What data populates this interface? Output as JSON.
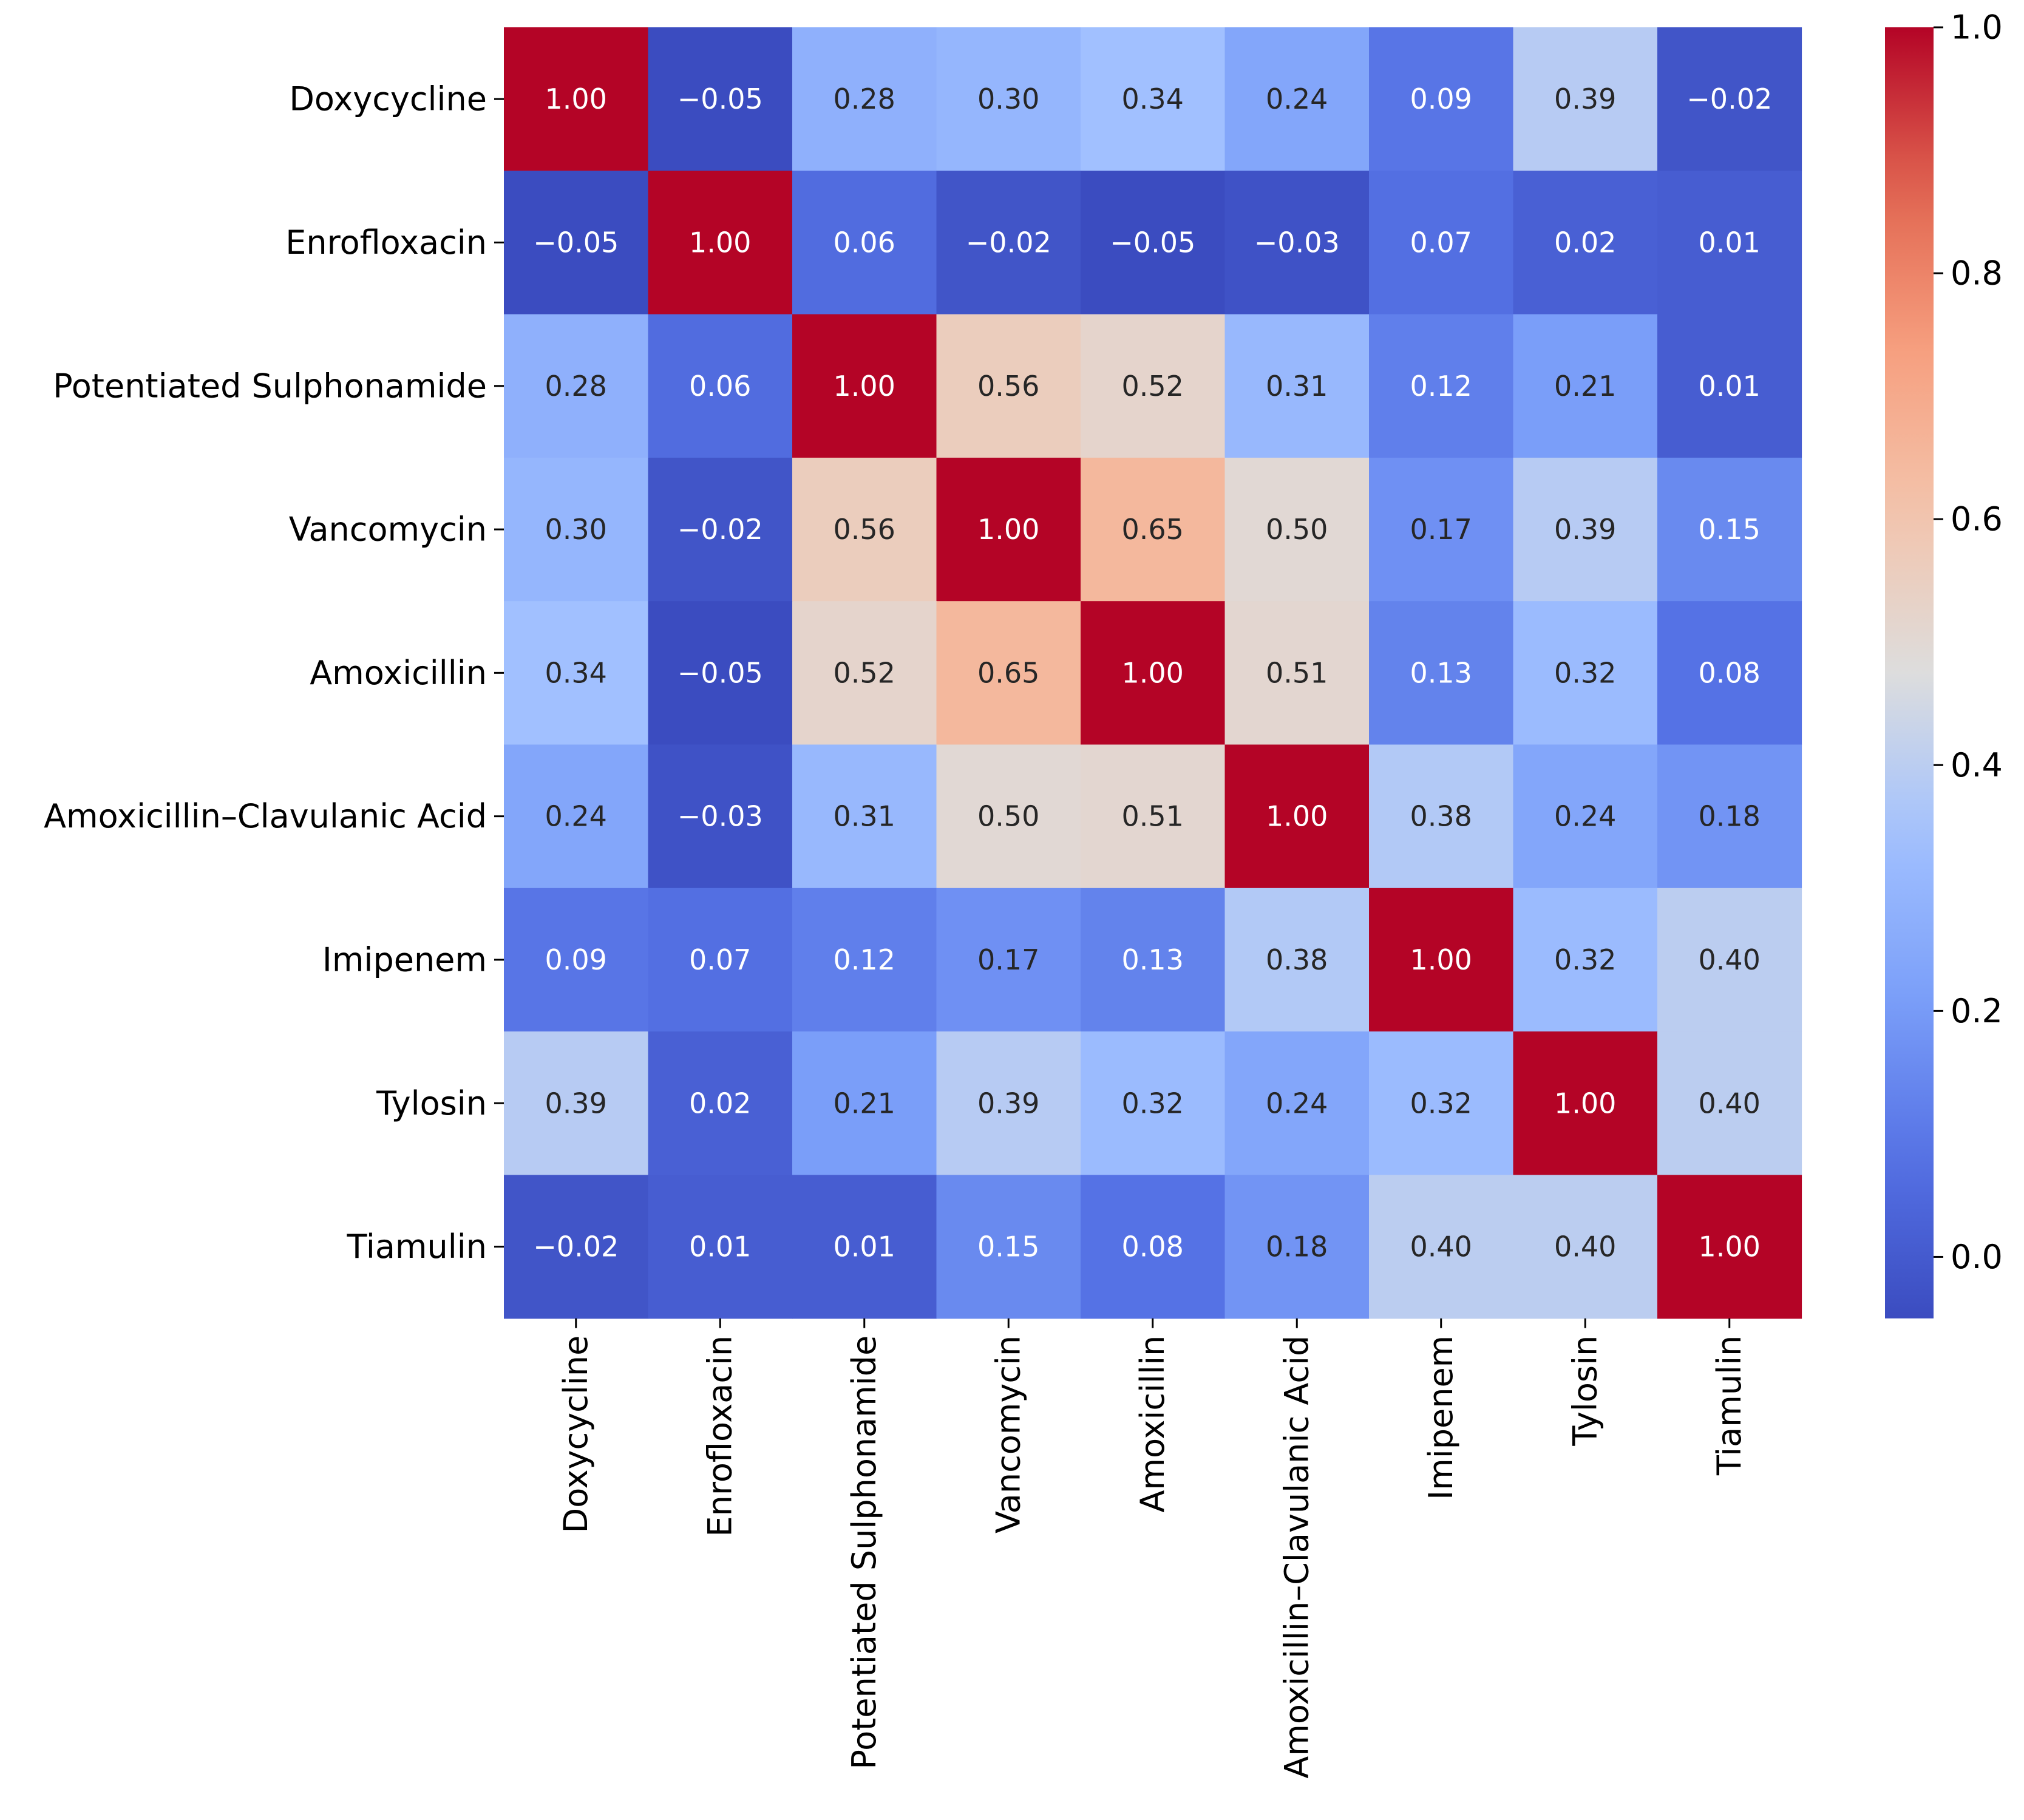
{
  "chart_data": {
    "type": "heatmap",
    "title": "",
    "xlabel": "",
    "ylabel": "",
    "rows": [
      "Doxycycline",
      "Enrofloxacin",
      "Potentiated Sulphonamide",
      "Vancomycin",
      "Amoxicillin",
      "Amoxicillin–Clavulanic Acid",
      "Imipenem",
      "Tylosin",
      "Tiamulin"
    ],
    "columns": [
      "Doxycycline",
      "Enrofloxacin",
      "Potentiated Sulphonamide",
      "Vancomycin",
      "Amoxicillin",
      "Amoxicillin–Clavulanic Acid",
      "Imipenem",
      "Tylosin",
      "Tiamulin"
    ],
    "values": [
      [
        1.0,
        -0.05,
        0.28,
        0.3,
        0.34,
        0.24,
        0.09,
        0.39,
        -0.02
      ],
      [
        -0.05,
        1.0,
        0.06,
        -0.02,
        -0.05,
        -0.03,
        0.07,
        0.02,
        0.01
      ],
      [
        0.28,
        0.06,
        1.0,
        0.56,
        0.52,
        0.31,
        0.12,
        0.21,
        0.01
      ],
      [
        0.3,
        -0.02,
        0.56,
        1.0,
        0.65,
        0.5,
        0.17,
        0.39,
        0.15
      ],
      [
        0.34,
        -0.05,
        0.52,
        0.65,
        1.0,
        0.51,
        0.13,
        0.32,
        0.08
      ],
      [
        0.24,
        -0.03,
        0.31,
        0.5,
        0.51,
        1.0,
        0.38,
        0.24,
        0.18
      ],
      [
        0.09,
        0.07,
        0.12,
        0.17,
        0.13,
        0.38,
        1.0,
        0.32,
        0.4
      ],
      [
        0.39,
        0.02,
        0.21,
        0.39,
        0.32,
        0.24,
        0.32,
        1.0,
        0.4
      ],
      [
        -0.02,
        0.01,
        0.01,
        0.15,
        0.08,
        0.18,
        0.4,
        0.4,
        1.0
      ]
    ],
    "value_labels": [
      [
        "1.00",
        "−0.05",
        "0.28",
        "0.30",
        "0.34",
        "0.24",
        "0.09",
        "0.39",
        "−0.02"
      ],
      [
        "−0.05",
        "1.00",
        "0.06",
        "−0.02",
        "−0.05",
        "−0.03",
        "0.07",
        "0.02",
        "0.01"
      ],
      [
        "0.28",
        "0.06",
        "1.00",
        "0.56",
        "0.52",
        "0.31",
        "0.12",
        "0.21",
        "0.01"
      ],
      [
        "0.30",
        "−0.02",
        "0.56",
        "1.00",
        "0.65",
        "0.50",
        "0.17",
        "0.39",
        "0.15"
      ],
      [
        "0.34",
        "−0.05",
        "0.52",
        "0.65",
        "1.00",
        "0.51",
        "0.13",
        "0.32",
        "0.08"
      ],
      [
        "0.24",
        "−0.03",
        "0.31",
        "0.50",
        "0.51",
        "1.00",
        "0.38",
        "0.24",
        "0.18"
      ],
      [
        "0.09",
        "0.07",
        "0.12",
        "0.17",
        "0.13",
        "0.38",
        "1.00",
        "0.32",
        "0.40"
      ],
      [
        "0.39",
        "0.02",
        "0.21",
        "0.39",
        "0.32",
        "0.24",
        "0.32",
        "1.00",
        "0.40"
      ],
      [
        "−0.02",
        "0.01",
        "0.01",
        "0.15",
        "0.08",
        "0.18",
        "0.40",
        "0.40",
        "1.00"
      ]
    ],
    "colormap": "coolwarm",
    "vmin": -0.05,
    "vmax": 1.0,
    "colorbar": {
      "ticks": [
        0.0,
        0.2,
        0.4,
        0.6,
        0.8,
        1.0
      ],
      "tick_labels": [
        "0.0",
        "0.2",
        "0.4",
        "0.6",
        "0.8",
        "1.0"
      ],
      "placement": "right"
    },
    "grid": false
  }
}
